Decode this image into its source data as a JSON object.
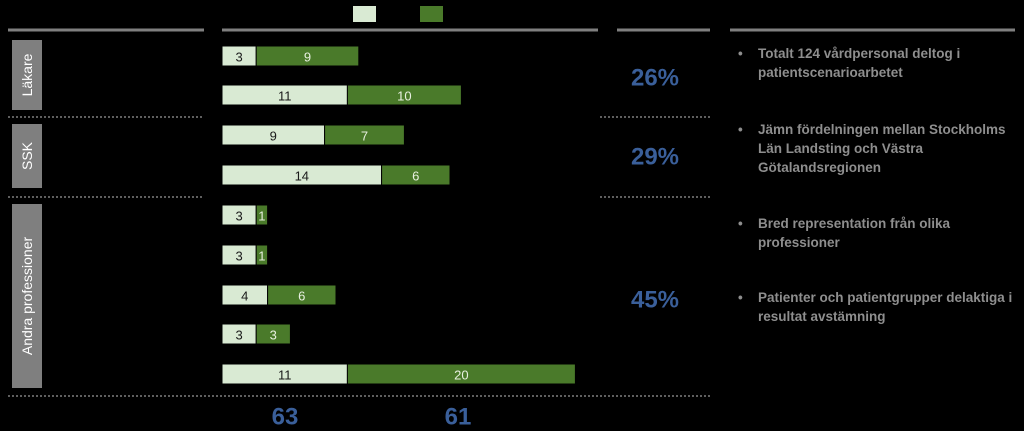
{
  "chart_data": {
    "type": "bar",
    "orientation": "horizontal",
    "stacked": true,
    "legend": {
      "placement": "top",
      "labels": [
        "",
        ""
      ]
    },
    "colors": {
      "series_1": "#d9ead3",
      "series_2": "#4a7a2a",
      "group_box": "#7f7f7f",
      "accent": "#3a5f9a"
    },
    "groups": [
      {
        "label": "Läkare",
        "percent": "26%",
        "rows": [
          {
            "values": [
              3,
              9
            ]
          },
          {
            "values": [
              11,
              10
            ]
          }
        ]
      },
      {
        "label": "SSK",
        "percent": "29%",
        "rows": [
          {
            "values": [
              9,
              7
            ]
          },
          {
            "values": [
              14,
              6
            ]
          }
        ]
      },
      {
        "label": "Andra professioner",
        "percent": "45%",
        "rows": [
          {
            "values": [
              3,
              1
            ]
          },
          {
            "values": [
              3,
              1
            ]
          },
          {
            "values": [
              4,
              6
            ]
          },
          {
            "values": [
              3,
              3
            ]
          },
          {
            "values": [
              11,
              20
            ]
          }
        ]
      }
    ],
    "totals": [
      63,
      61
    ]
  },
  "bullets": [
    "Totalt 124 vårdpersonal deltog i patientscenarioarbetet",
    "Jämn fördelningen mellan Stockholms Län Landsting och Västra Götalandsregionen",
    "Bred representation från olika professioner",
    "Patienter och patientgrupper delaktiga i resultat avstämning"
  ]
}
